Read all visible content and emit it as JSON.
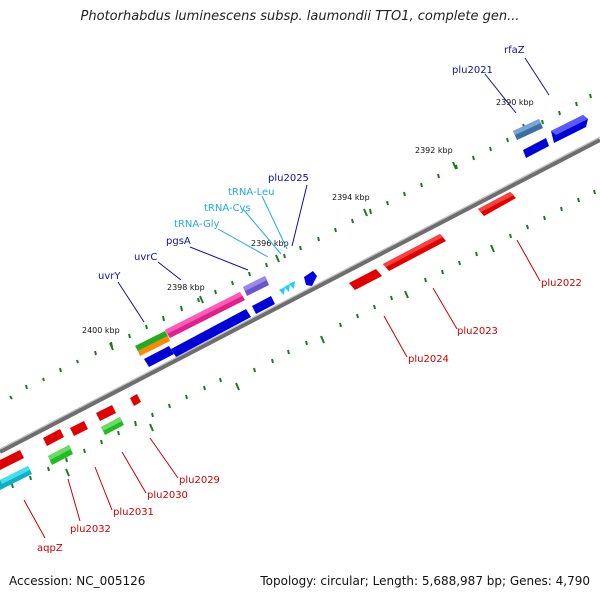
{
  "title": "Photorhabdus luminescens subsp. laumondii TTO1, complete gen...",
  "footer": {
    "accession": "Accession: NC_005126",
    "summary": "Topology: circular; Length: 5,688,987 bp; Genes: 4,790"
  },
  "colors": {
    "backbone": "#7a7a7a",
    "tick": "#1f7a1f",
    "forward_gene": "#0000e0",
    "reverse_gene": "#e00000",
    "label_forward": "#1010a0",
    "label_reverse": "#cc0000",
    "label_trna": "#22aadd"
  },
  "scale_labels": [
    "2390 kbp",
    "2392 kbp",
    "2394 kbp",
    "2396 kbp",
    "2398 kbp",
    "2400 kbp"
  ],
  "labels": {
    "rfaZ": "rfaZ",
    "plu2021": "plu2021",
    "plu2025": "plu2025",
    "trna_leu": "tRNA-Leu",
    "trna_cys": "tRNA-Cys",
    "trna_gly": "tRNA-Gly",
    "pgsA": "pgsA",
    "uvrC": "uvrC",
    "uvrY": "uvrY",
    "plu2022": "plu2022",
    "plu2023": "plu2023",
    "plu2024": "plu2024",
    "plu2029": "plu2029",
    "plu2030": "plu2030",
    "plu2031": "plu2031",
    "plu2032": "plu2032",
    "aqpZ": "aqpZ"
  }
}
